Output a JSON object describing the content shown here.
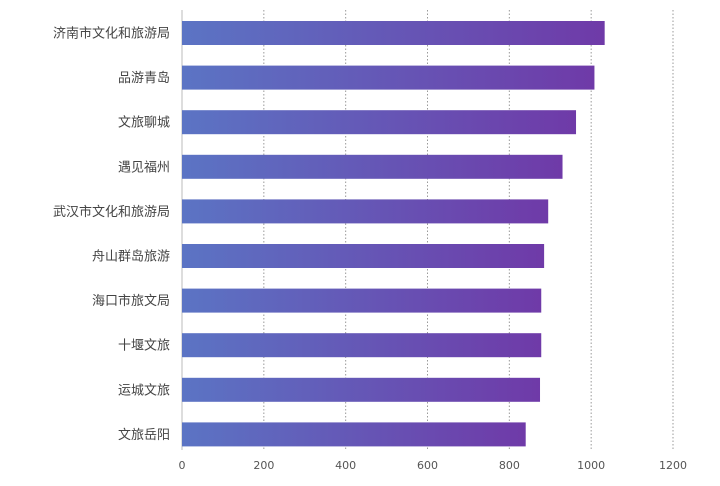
{
  "chart_data": {
    "type": "bar",
    "orientation": "horizontal",
    "categories": [
      "济南市文化和旅游局",
      "品游青岛",
      "文旅聊城",
      "遇见福州",
      "武汉市文化和旅游局",
      "舟山群岛旅游",
      "海口市旅文局",
      "十堰文旅",
      "运城文旅",
      "文旅岳阳"
    ],
    "values": [
      1033,
      1008,
      963,
      930,
      895,
      885,
      878,
      878,
      875,
      840
    ],
    "xlim": [
      0,
      1200
    ],
    "xticks": [
      "0",
      "200",
      "400",
      "600",
      "800",
      "1000",
      "1200"
    ],
    "title": "",
    "xlabel": "",
    "ylabel": "",
    "grid": "vertical dotted",
    "colors": {
      "bar_start": "#5b74c4",
      "bar_end": "#6f3aa8"
    }
  }
}
